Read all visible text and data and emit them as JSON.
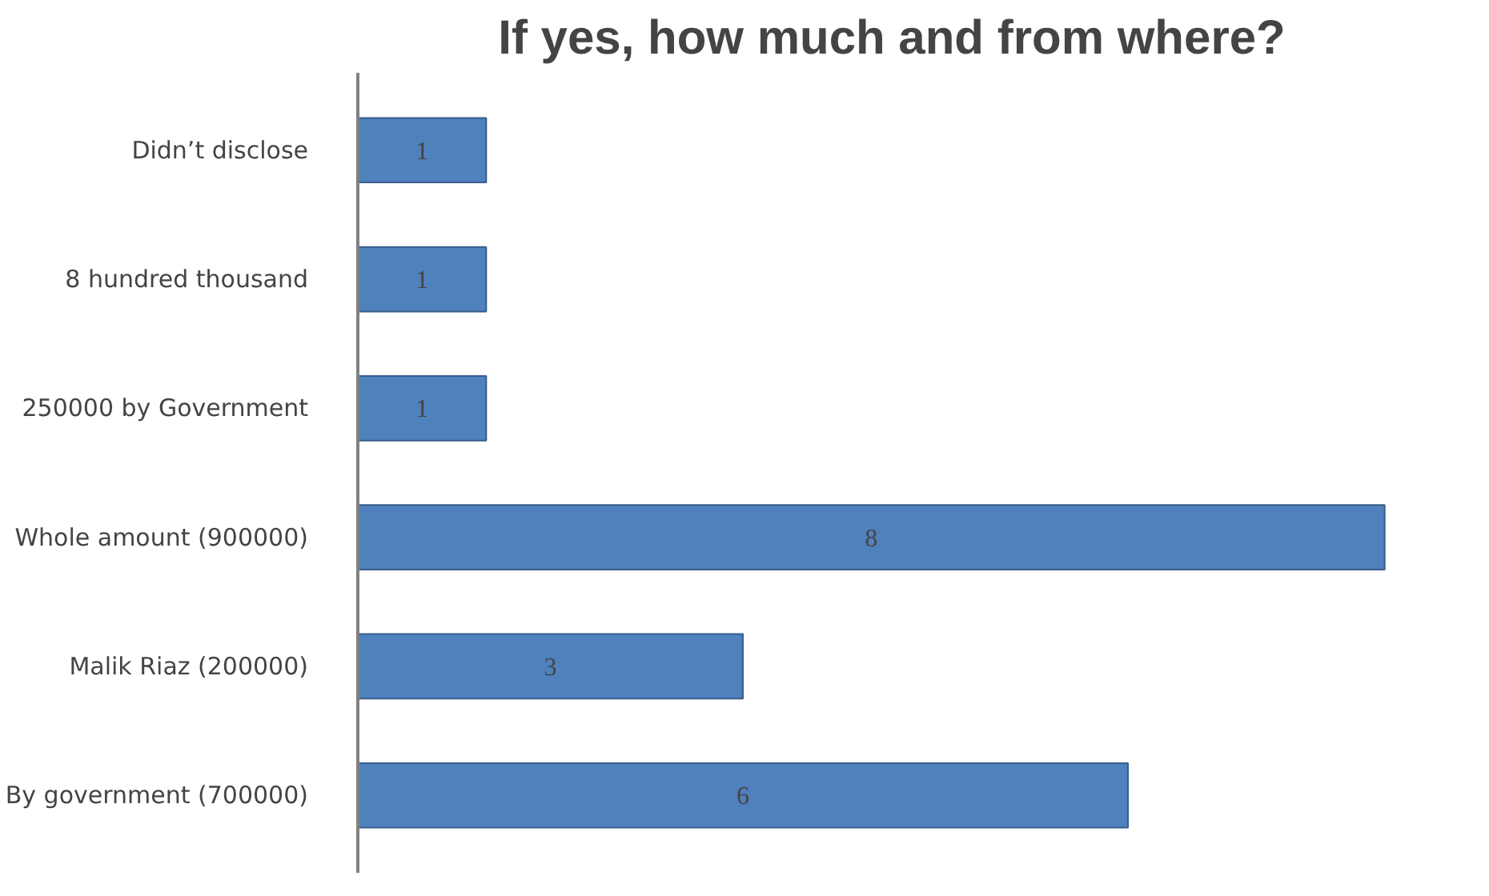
{
  "chart_data": {
    "type": "bar",
    "orientation": "horizontal",
    "title": "If yes, how much and from where?",
    "categories": [
      "Didn’t disclose",
      "8 hundred thousand",
      "250000 by Government",
      "Whole amount (900000)",
      "Malik Riaz (200000)",
      "By government (700000)"
    ],
    "values": [
      1,
      1,
      1,
      8,
      3,
      6
    ],
    "color": "#4f81bd",
    "data_labels": true
  }
}
